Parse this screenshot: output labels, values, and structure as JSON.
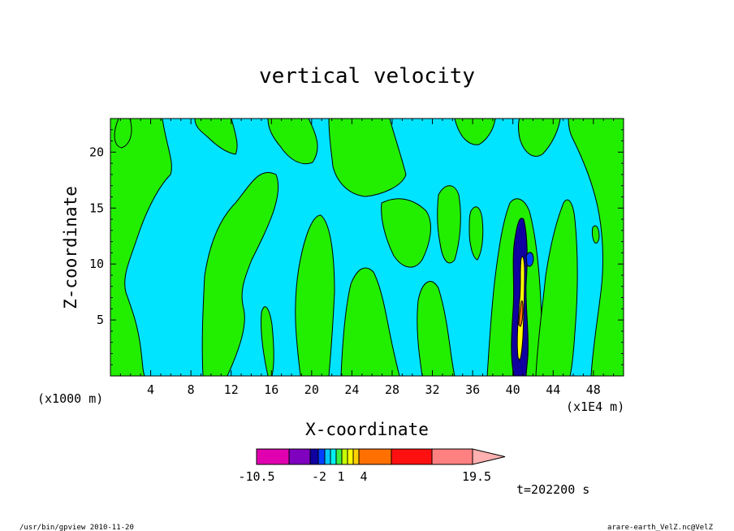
{
  "chart_data": {
    "type": "heatmap",
    "title": "vertical velocity",
    "xlabel": "X-coordinate",
    "ylabel": "Z-coordinate",
    "x_unit_label": "(x1000 m)",
    "x_scale_label": "(x1E4 m)",
    "xlim": [
      0,
      51
    ],
    "ylim": [
      0,
      23
    ],
    "x_ticks": [
      "4",
      "8",
      "12",
      "16",
      "20",
      "24",
      "28",
      "32",
      "36",
      "40",
      "44",
      "48"
    ],
    "x_tick_values": [
      4,
      8,
      12,
      16,
      20,
      24,
      28,
      32,
      36,
      40,
      44,
      48
    ],
    "y_ticks": [
      "5",
      "10",
      "15",
      "20"
    ],
    "y_tick_values": [
      5,
      10,
      15,
      20
    ],
    "colorbar": {
      "colors": [
        "#e000b0",
        "#8000c0",
        "#1000a0",
        "#0040ff",
        "#00c8ff",
        "#00f0f0",
        "#40f040",
        "#c8ff00",
        "#ffff00",
        "#ffd000",
        "#ff7000",
        "#ff1010",
        "#ff8080",
        "#ffb0b0"
      ],
      "labels": [
        "-10.5",
        "-2",
        "1",
        "4",
        "19.5"
      ]
    },
    "fields": {
      "background_color": "#00e4ff",
      "positive_color": "#22ee00",
      "contour_color": "#000000",
      "strong_updraft_colors": [
        "#ffff00",
        "#ff7000",
        "#0040ff",
        "#1000a0"
      ]
    },
    "time_label": "t=202200 s"
  },
  "footer": {
    "left": "/usr/bin/gpview   2010-11-20",
    "right": "arare-earth_VelZ.nc@VelZ"
  }
}
